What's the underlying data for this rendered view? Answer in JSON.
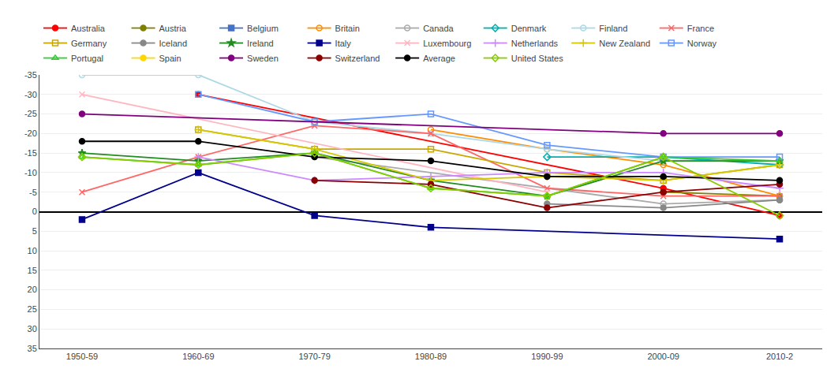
{
  "chart_data": {
    "type": "line",
    "categories": [
      "1950-59",
      "1960-69",
      "1970-79",
      "1980-89",
      "1990-99",
      "2000-09",
      "2010-2"
    ],
    "ylim": [
      35,
      -35
    ],
    "yticks": [
      35,
      30,
      25,
      20,
      15,
      10,
      5,
      0,
      -5,
      -10,
      -15,
      -20,
      -25,
      -30,
      -35
    ],
    "grid": true,
    "legend": "top",
    "series": [
      {
        "name": "Australia",
        "color": "#ff0000",
        "marker": "circle",
        "values": [
          null,
          -30,
          null,
          null,
          null,
          -6,
          1
        ]
      },
      {
        "name": "Austria",
        "color": "#808000",
        "marker": "circle",
        "values": [
          null,
          null,
          null,
          null,
          null,
          -5,
          -4
        ]
      },
      {
        "name": "Belgium",
        "color": "#4472c4",
        "marker": "square",
        "values": [
          null,
          null,
          null,
          null,
          null,
          null,
          null
        ]
      },
      {
        "name": "Britain",
        "color": "#ff8c00",
        "marker": "circle-open",
        "values": [
          null,
          null,
          null,
          -21,
          -16,
          -12,
          -4
        ]
      },
      {
        "name": "Canada",
        "color": "#aaaaaa",
        "marker": "circle-open",
        "values": [
          null,
          null,
          -14,
          null,
          null,
          -2,
          -3
        ]
      },
      {
        "name": "Denmark",
        "color": "#00b0b0",
        "marker": "diamond-open",
        "values": [
          null,
          null,
          null,
          null,
          -14,
          -14,
          -12
        ]
      },
      {
        "name": "Finland",
        "color": "#add8e6",
        "marker": "circle-open",
        "values": [
          -35,
          -35,
          -23,
          -20,
          -16,
          -13,
          -13
        ]
      },
      {
        "name": "France",
        "color": "#ff6666",
        "marker": "x-thin-open",
        "values": [
          -5,
          -14,
          -22,
          -20,
          -6,
          -4,
          -4
        ]
      },
      {
        "name": "Germany",
        "color": "#c8a800",
        "marker": "square-open",
        "values": [
          null,
          -21,
          -16,
          -16,
          -10,
          -8,
          -12
        ]
      },
      {
        "name": "Iceland",
        "color": "#888888",
        "marker": "circle",
        "values": [
          null,
          null,
          null,
          null,
          -2,
          -1,
          -3
        ]
      },
      {
        "name": "Ireland",
        "color": "#228b22",
        "marker": "star",
        "values": [
          -15,
          -13,
          -15,
          -8,
          -4,
          -13,
          -13
        ]
      },
      {
        "name": "Italy",
        "color": "#00008b",
        "marker": "square",
        "values": [
          2,
          -10,
          1,
          4,
          null,
          null,
          7
        ]
      },
      {
        "name": "Luxembourg",
        "color": "#ffb6c1",
        "marker": "x-thin-open",
        "values": [
          -30,
          null,
          null,
          null,
          -5,
          null,
          null
        ]
      },
      {
        "name": "Netherlands",
        "color": "#cc88ff",
        "marker": "cross-thin-open",
        "values": [
          null,
          -14,
          -8,
          -9,
          -10,
          -10,
          -6
        ]
      },
      {
        "name": "New Zealand",
        "color": "#d4c800",
        "marker": "cross-thin-open",
        "values": [
          null,
          -21,
          -16,
          -8,
          -9,
          -8,
          -12
        ]
      },
      {
        "name": "Norway",
        "color": "#6699ff",
        "marker": "square-open",
        "values": [
          null,
          -30,
          -23,
          -25,
          -17,
          -14,
          -14
        ]
      },
      {
        "name": "Portugal",
        "color": "#32cd32",
        "marker": "triangle-up-open",
        "values": [
          -14,
          -12,
          -15,
          -6,
          -4,
          -14,
          -13
        ]
      },
      {
        "name": "Spain",
        "color": "#ffd700",
        "marker": "circle",
        "values": [
          null,
          null,
          null,
          null,
          null,
          null,
          -20
        ]
      },
      {
        "name": "Sweden",
        "color": "#800080",
        "marker": "circle",
        "values": [
          -25,
          null,
          null,
          null,
          null,
          -20,
          -20
        ]
      },
      {
        "name": "Switzerland",
        "color": "#8b0000",
        "marker": "circle",
        "values": [
          null,
          null,
          -8,
          -7,
          -1,
          -5,
          -7
        ]
      },
      {
        "name": "Average",
        "color": "#000000",
        "marker": "circle",
        "values": [
          -18,
          -18,
          -14,
          -13,
          -9,
          -9,
          -8
        ]
      },
      {
        "name": "United States",
        "color": "#88cc00",
        "marker": "diamond-open",
        "values": [
          -14,
          -12,
          -15,
          -6,
          -4,
          -14,
          1
        ]
      }
    ]
  }
}
